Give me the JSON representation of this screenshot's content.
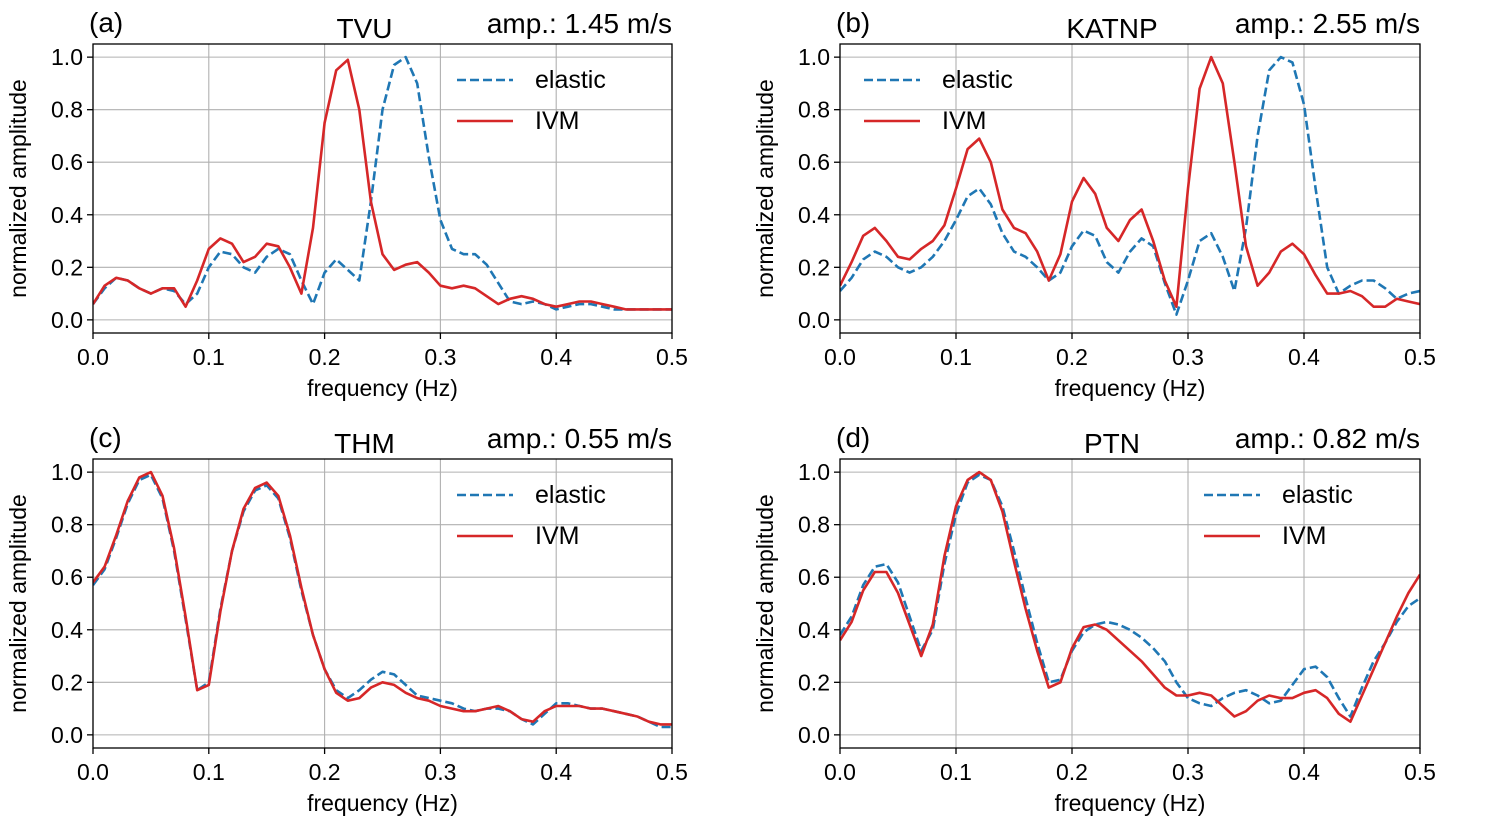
{
  "chart_data": [
    {
      "type": "line",
      "panel_label": "(a)",
      "title": "TVU",
      "amp_text": "amp.: 1.45 m/s",
      "xlabel": "frequency (Hz)",
      "ylabel": "normalized amplitude",
      "xlim": [
        0,
        0.5
      ],
      "ylim": [
        -0.05,
        1.05
      ],
      "xticks": [
        0,
        0.1,
        0.2,
        0.3,
        0.4,
        0.5
      ],
      "xtick_labels": [
        "0.0",
        "0.1",
        "0.2",
        "0.3",
        "0.4",
        "0.5"
      ],
      "yticks": [
        0,
        0.2,
        0.4,
        0.6,
        0.8,
        1.0
      ],
      "ytick_labels": [
        "0.0",
        "0.2",
        "0.4",
        "0.6",
        "0.8",
        "1.0"
      ],
      "grid": true,
      "legend_position": "top-right",
      "series": [
        {
          "name": "elastic",
          "style": "dashed",
          "color": "#1f77b4",
          "x": [
            0,
            0.01,
            0.02,
            0.03,
            0.04,
            0.05,
            0.06,
            0.07,
            0.08,
            0.09,
            0.1,
            0.11,
            0.12,
            0.13,
            0.14,
            0.15,
            0.16,
            0.17,
            0.18,
            0.19,
            0.2,
            0.21,
            0.22,
            0.23,
            0.24,
            0.25,
            0.26,
            0.27,
            0.28,
            0.29,
            0.3,
            0.31,
            0.32,
            0.33,
            0.34,
            0.35,
            0.36,
            0.37,
            0.38,
            0.39,
            0.4,
            0.41,
            0.42,
            0.43,
            0.44,
            0.45,
            0.46,
            0.47,
            0.48,
            0.49,
            0.5
          ],
          "y": [
            0.06,
            0.12,
            0.16,
            0.15,
            0.12,
            0.1,
            0.12,
            0.11,
            0.06,
            0.1,
            0.2,
            0.26,
            0.25,
            0.2,
            0.18,
            0.24,
            0.27,
            0.25,
            0.15,
            0.06,
            0.18,
            0.23,
            0.19,
            0.15,
            0.45,
            0.8,
            0.97,
            1.0,
            0.9,
            0.62,
            0.38,
            0.27,
            0.25,
            0.25,
            0.21,
            0.14,
            0.07,
            0.06,
            0.07,
            0.06,
            0.04,
            0.05,
            0.06,
            0.06,
            0.05,
            0.04,
            0.04,
            0.04,
            0.04,
            0.04,
            0.04
          ]
        },
        {
          "name": "IVM",
          "style": "solid",
          "color": "#d62728",
          "x": [
            0,
            0.01,
            0.02,
            0.03,
            0.04,
            0.05,
            0.06,
            0.07,
            0.08,
            0.09,
            0.1,
            0.11,
            0.12,
            0.13,
            0.14,
            0.15,
            0.16,
            0.17,
            0.18,
            0.19,
            0.2,
            0.21,
            0.22,
            0.23,
            0.24,
            0.25,
            0.26,
            0.27,
            0.28,
            0.29,
            0.3,
            0.31,
            0.32,
            0.33,
            0.34,
            0.35,
            0.36,
            0.37,
            0.38,
            0.39,
            0.4,
            0.41,
            0.42,
            0.43,
            0.44,
            0.45,
            0.46,
            0.47,
            0.48,
            0.49,
            0.5
          ],
          "y": [
            0.06,
            0.13,
            0.16,
            0.15,
            0.12,
            0.1,
            0.12,
            0.12,
            0.05,
            0.15,
            0.27,
            0.31,
            0.29,
            0.22,
            0.24,
            0.29,
            0.28,
            0.2,
            0.1,
            0.35,
            0.75,
            0.95,
            0.99,
            0.8,
            0.45,
            0.25,
            0.19,
            0.21,
            0.22,
            0.18,
            0.13,
            0.12,
            0.13,
            0.12,
            0.09,
            0.06,
            0.08,
            0.09,
            0.08,
            0.06,
            0.05,
            0.06,
            0.07,
            0.07,
            0.06,
            0.05,
            0.04,
            0.04,
            0.04,
            0.04,
            0.04
          ]
        }
      ]
    },
    {
      "type": "line",
      "panel_label": "(b)",
      "title": "KATNP",
      "amp_text": "amp.: 2.55 m/s",
      "xlabel": "frequency (Hz)",
      "ylabel": "normalized amplitude",
      "xlim": [
        0,
        0.5
      ],
      "ylim": [
        -0.05,
        1.05
      ],
      "xticks": [
        0,
        0.1,
        0.2,
        0.3,
        0.4,
        0.5
      ],
      "xtick_labels": [
        "0.0",
        "0.1",
        "0.2",
        "0.3",
        "0.4",
        "0.5"
      ],
      "yticks": [
        0,
        0.2,
        0.4,
        0.6,
        0.8,
        1.0
      ],
      "ytick_labels": [
        "0.0",
        "0.2",
        "0.4",
        "0.6",
        "0.8",
        "1.0"
      ],
      "grid": true,
      "legend_position": "top-left",
      "series": [
        {
          "name": "elastic",
          "style": "dashed",
          "color": "#1f77b4",
          "x": [
            0,
            0.01,
            0.02,
            0.03,
            0.04,
            0.05,
            0.06,
            0.07,
            0.08,
            0.09,
            0.1,
            0.11,
            0.12,
            0.13,
            0.14,
            0.15,
            0.16,
            0.17,
            0.18,
            0.19,
            0.2,
            0.21,
            0.22,
            0.23,
            0.24,
            0.25,
            0.26,
            0.27,
            0.28,
            0.29,
            0.3,
            0.31,
            0.32,
            0.33,
            0.34,
            0.35,
            0.36,
            0.37,
            0.38,
            0.39,
            0.4,
            0.41,
            0.42,
            0.43,
            0.44,
            0.45,
            0.46,
            0.47,
            0.48,
            0.49,
            0.5
          ],
          "y": [
            0.11,
            0.16,
            0.23,
            0.26,
            0.24,
            0.2,
            0.18,
            0.2,
            0.24,
            0.3,
            0.38,
            0.47,
            0.5,
            0.44,
            0.33,
            0.26,
            0.24,
            0.2,
            0.15,
            0.18,
            0.28,
            0.34,
            0.32,
            0.22,
            0.18,
            0.26,
            0.31,
            0.28,
            0.14,
            0.02,
            0.15,
            0.3,
            0.33,
            0.24,
            0.11,
            0.35,
            0.7,
            0.95,
            1.0,
            0.98,
            0.82,
            0.5,
            0.2,
            0.1,
            0.13,
            0.15,
            0.15,
            0.12,
            0.08,
            0.1,
            0.11
          ]
        },
        {
          "name": "IVM",
          "style": "solid",
          "color": "#d62728",
          "x": [
            0,
            0.01,
            0.02,
            0.03,
            0.04,
            0.05,
            0.06,
            0.07,
            0.08,
            0.09,
            0.1,
            0.11,
            0.12,
            0.13,
            0.14,
            0.15,
            0.16,
            0.17,
            0.18,
            0.19,
            0.2,
            0.21,
            0.22,
            0.23,
            0.24,
            0.25,
            0.26,
            0.27,
            0.28,
            0.29,
            0.3,
            0.31,
            0.32,
            0.33,
            0.34,
            0.35,
            0.36,
            0.37,
            0.38,
            0.39,
            0.4,
            0.41,
            0.42,
            0.43,
            0.44,
            0.45,
            0.46,
            0.47,
            0.48,
            0.49,
            0.5
          ],
          "y": [
            0.13,
            0.22,
            0.32,
            0.35,
            0.3,
            0.24,
            0.23,
            0.27,
            0.3,
            0.36,
            0.5,
            0.65,
            0.69,
            0.6,
            0.42,
            0.35,
            0.33,
            0.26,
            0.15,
            0.25,
            0.45,
            0.54,
            0.48,
            0.35,
            0.3,
            0.38,
            0.42,
            0.3,
            0.15,
            0.05,
            0.5,
            0.88,
            1.0,
            0.9,
            0.6,
            0.28,
            0.13,
            0.18,
            0.26,
            0.29,
            0.25,
            0.17,
            0.1,
            0.1,
            0.11,
            0.09,
            0.05,
            0.05,
            0.08,
            0.07,
            0.06
          ]
        }
      ]
    },
    {
      "type": "line",
      "panel_label": "(c)",
      "title": "THM",
      "amp_text": "amp.: 0.55 m/s",
      "xlabel": "frequency (Hz)",
      "ylabel": "normalized amplitude",
      "xlim": [
        0,
        0.5
      ],
      "ylim": [
        -0.05,
        1.05
      ],
      "xticks": [
        0,
        0.1,
        0.2,
        0.3,
        0.4,
        0.5
      ],
      "xtick_labels": [
        "0.0",
        "0.1",
        "0.2",
        "0.3",
        "0.4",
        "0.5"
      ],
      "yticks": [
        0,
        0.2,
        0.4,
        0.6,
        0.8,
        1.0
      ],
      "ytick_labels": [
        "0.0",
        "0.2",
        "0.4",
        "0.6",
        "0.8",
        "1.0"
      ],
      "grid": true,
      "legend_position": "top-right",
      "series": [
        {
          "name": "elastic",
          "style": "dashed",
          "color": "#1f77b4",
          "x": [
            0,
            0.01,
            0.02,
            0.03,
            0.04,
            0.05,
            0.06,
            0.07,
            0.08,
            0.09,
            0.1,
            0.11,
            0.12,
            0.13,
            0.14,
            0.15,
            0.16,
            0.17,
            0.18,
            0.19,
            0.2,
            0.21,
            0.22,
            0.23,
            0.24,
            0.25,
            0.26,
            0.27,
            0.28,
            0.29,
            0.3,
            0.31,
            0.32,
            0.33,
            0.34,
            0.35,
            0.36,
            0.37,
            0.38,
            0.39,
            0.4,
            0.41,
            0.42,
            0.43,
            0.44,
            0.45,
            0.46,
            0.47,
            0.48,
            0.49,
            0.5
          ],
          "y": [
            0.57,
            0.63,
            0.75,
            0.88,
            0.97,
            0.99,
            0.9,
            0.7,
            0.44,
            0.17,
            0.2,
            0.48,
            0.7,
            0.85,
            0.93,
            0.95,
            0.9,
            0.75,
            0.55,
            0.38,
            0.25,
            0.17,
            0.14,
            0.17,
            0.21,
            0.24,
            0.23,
            0.19,
            0.15,
            0.14,
            0.13,
            0.12,
            0.1,
            0.09,
            0.1,
            0.1,
            0.09,
            0.06,
            0.04,
            0.08,
            0.12,
            0.12,
            0.11,
            0.1,
            0.1,
            0.09,
            0.08,
            0.07,
            0.05,
            0.03,
            0.03
          ]
        },
        {
          "name": "IVM",
          "style": "solid",
          "color": "#d62728",
          "x": [
            0,
            0.01,
            0.02,
            0.03,
            0.04,
            0.05,
            0.06,
            0.07,
            0.08,
            0.09,
            0.1,
            0.11,
            0.12,
            0.13,
            0.14,
            0.15,
            0.16,
            0.17,
            0.18,
            0.19,
            0.2,
            0.21,
            0.22,
            0.23,
            0.24,
            0.25,
            0.26,
            0.27,
            0.28,
            0.29,
            0.3,
            0.31,
            0.32,
            0.33,
            0.34,
            0.35,
            0.36,
            0.37,
            0.38,
            0.39,
            0.4,
            0.41,
            0.42,
            0.43,
            0.44,
            0.45,
            0.46,
            0.47,
            0.48,
            0.49,
            0.5
          ],
          "y": [
            0.58,
            0.64,
            0.76,
            0.89,
            0.98,
            1.0,
            0.91,
            0.71,
            0.45,
            0.17,
            0.19,
            0.47,
            0.7,
            0.86,
            0.94,
            0.96,
            0.91,
            0.76,
            0.56,
            0.38,
            0.25,
            0.16,
            0.13,
            0.14,
            0.18,
            0.2,
            0.19,
            0.16,
            0.14,
            0.13,
            0.11,
            0.1,
            0.09,
            0.09,
            0.1,
            0.11,
            0.09,
            0.06,
            0.05,
            0.09,
            0.11,
            0.11,
            0.11,
            0.1,
            0.1,
            0.09,
            0.08,
            0.07,
            0.05,
            0.04,
            0.04
          ]
        }
      ]
    },
    {
      "type": "line",
      "panel_label": "(d)",
      "title": "PTN",
      "amp_text": "amp.: 0.82 m/s",
      "xlabel": "frequency (Hz)",
      "ylabel": "normalized amplitude",
      "xlim": [
        0,
        0.5
      ],
      "ylim": [
        -0.05,
        1.05
      ],
      "xticks": [
        0,
        0.1,
        0.2,
        0.3,
        0.4,
        0.5
      ],
      "xtick_labels": [
        "0.0",
        "0.1",
        "0.2",
        "0.3",
        "0.4",
        "0.5"
      ],
      "yticks": [
        0,
        0.2,
        0.4,
        0.6,
        0.8,
        1.0
      ],
      "ytick_labels": [
        "0.0",
        "0.2",
        "0.4",
        "0.6",
        "0.8",
        "1.0"
      ],
      "grid": true,
      "legend_position": "top-right",
      "series": [
        {
          "name": "elastic",
          "style": "dashed",
          "color": "#1f77b4",
          "x": [
            0,
            0.01,
            0.02,
            0.03,
            0.04,
            0.05,
            0.06,
            0.07,
            0.08,
            0.09,
            0.1,
            0.11,
            0.12,
            0.13,
            0.14,
            0.15,
            0.16,
            0.17,
            0.18,
            0.19,
            0.2,
            0.21,
            0.22,
            0.23,
            0.24,
            0.25,
            0.26,
            0.27,
            0.28,
            0.29,
            0.3,
            0.31,
            0.32,
            0.33,
            0.34,
            0.35,
            0.36,
            0.37,
            0.38,
            0.39,
            0.4,
            0.41,
            0.42,
            0.43,
            0.44,
            0.45,
            0.46,
            0.47,
            0.48,
            0.49,
            0.5
          ],
          "y": [
            0.38,
            0.45,
            0.57,
            0.64,
            0.65,
            0.58,
            0.45,
            0.32,
            0.4,
            0.65,
            0.84,
            0.96,
            0.99,
            0.97,
            0.87,
            0.7,
            0.52,
            0.35,
            0.2,
            0.21,
            0.32,
            0.39,
            0.42,
            0.43,
            0.42,
            0.4,
            0.37,
            0.33,
            0.28,
            0.2,
            0.14,
            0.12,
            0.11,
            0.14,
            0.16,
            0.17,
            0.15,
            0.12,
            0.13,
            0.19,
            0.25,
            0.26,
            0.22,
            0.14,
            0.07,
            0.18,
            0.28,
            0.35,
            0.43,
            0.49,
            0.52
          ]
        },
        {
          "name": "IVM",
          "style": "solid",
          "color": "#d62728",
          "x": [
            0,
            0.01,
            0.02,
            0.03,
            0.04,
            0.05,
            0.06,
            0.07,
            0.08,
            0.09,
            0.1,
            0.11,
            0.12,
            0.13,
            0.14,
            0.15,
            0.16,
            0.17,
            0.18,
            0.19,
            0.2,
            0.21,
            0.22,
            0.23,
            0.24,
            0.25,
            0.26,
            0.27,
            0.28,
            0.29,
            0.3,
            0.31,
            0.32,
            0.33,
            0.34,
            0.35,
            0.36,
            0.37,
            0.38,
            0.39,
            0.4,
            0.41,
            0.42,
            0.43,
            0.44,
            0.45,
            0.46,
            0.47,
            0.48,
            0.49,
            0.5
          ],
          "y": [
            0.36,
            0.43,
            0.55,
            0.62,
            0.62,
            0.54,
            0.42,
            0.3,
            0.42,
            0.68,
            0.87,
            0.97,
            1.0,
            0.97,
            0.85,
            0.66,
            0.48,
            0.32,
            0.18,
            0.2,
            0.33,
            0.41,
            0.42,
            0.4,
            0.36,
            0.32,
            0.28,
            0.23,
            0.18,
            0.15,
            0.15,
            0.16,
            0.15,
            0.11,
            0.07,
            0.09,
            0.13,
            0.15,
            0.14,
            0.14,
            0.16,
            0.17,
            0.14,
            0.08,
            0.05,
            0.15,
            0.25,
            0.35,
            0.45,
            0.54,
            0.61
          ]
        }
      ]
    }
  ]
}
